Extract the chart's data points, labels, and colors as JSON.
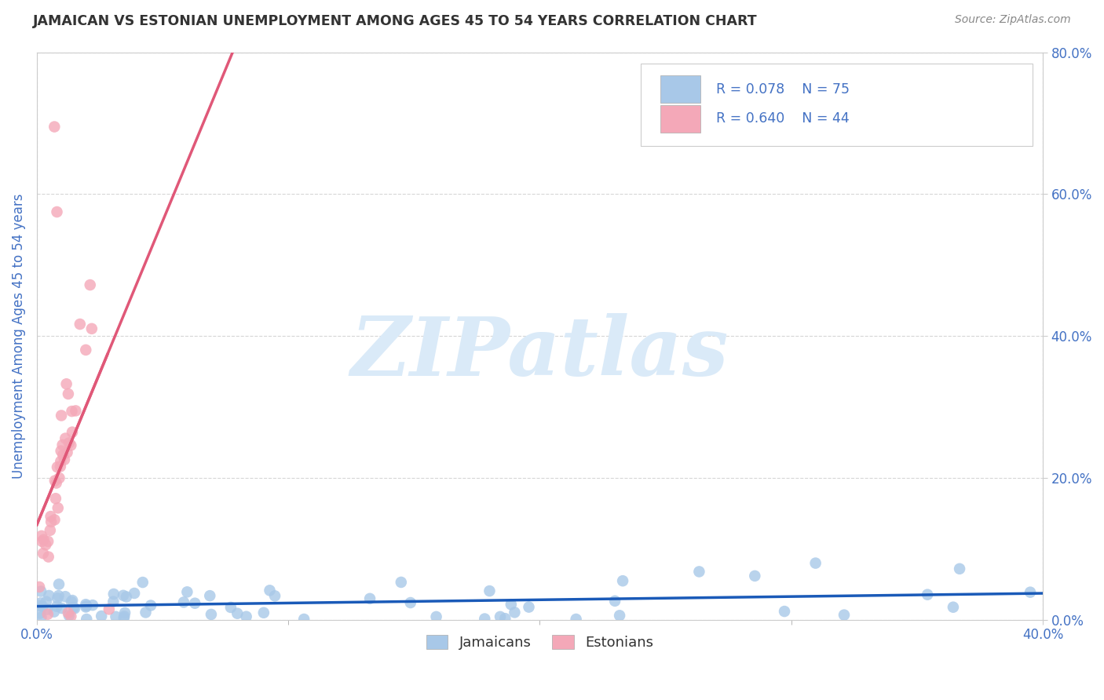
{
  "title": "JAMAICAN VS ESTONIAN UNEMPLOYMENT AMONG AGES 45 TO 54 YEARS CORRELATION CHART",
  "source": "Source: ZipAtlas.com",
  "ylabel": "Unemployment Among Ages 45 to 54 years",
  "xlim": [
    0.0,
    0.4
  ],
  "ylim": [
    0.0,
    0.8
  ],
  "xtick_positions": [
    0.0,
    0.4
  ],
  "xtick_labels": [
    "0.0%",
    "40.0%"
  ],
  "ytick_positions": [
    0.0,
    0.2,
    0.4,
    0.6,
    0.8
  ],
  "ytick_labels": [
    "0.0%",
    "20.0%",
    "40.0%",
    "60.0%",
    "80.0%"
  ],
  "jamaicans_R": 0.078,
  "jamaicans_N": 75,
  "estonians_R": 0.64,
  "estonians_N": 44,
  "jamaican_color": "#a8c8e8",
  "estonian_color": "#f4a8b8",
  "jamaican_line_color": "#1a5ab8",
  "estonian_line_color": "#e05878",
  "background_color": "#ffffff",
  "grid_color": "#cccccc",
  "title_color": "#333333",
  "axis_label_color": "#4472c4",
  "tick_label_color": "#4472c4",
  "watermark_color": "#daeaf8",
  "legend_border_color": "#cccccc"
}
